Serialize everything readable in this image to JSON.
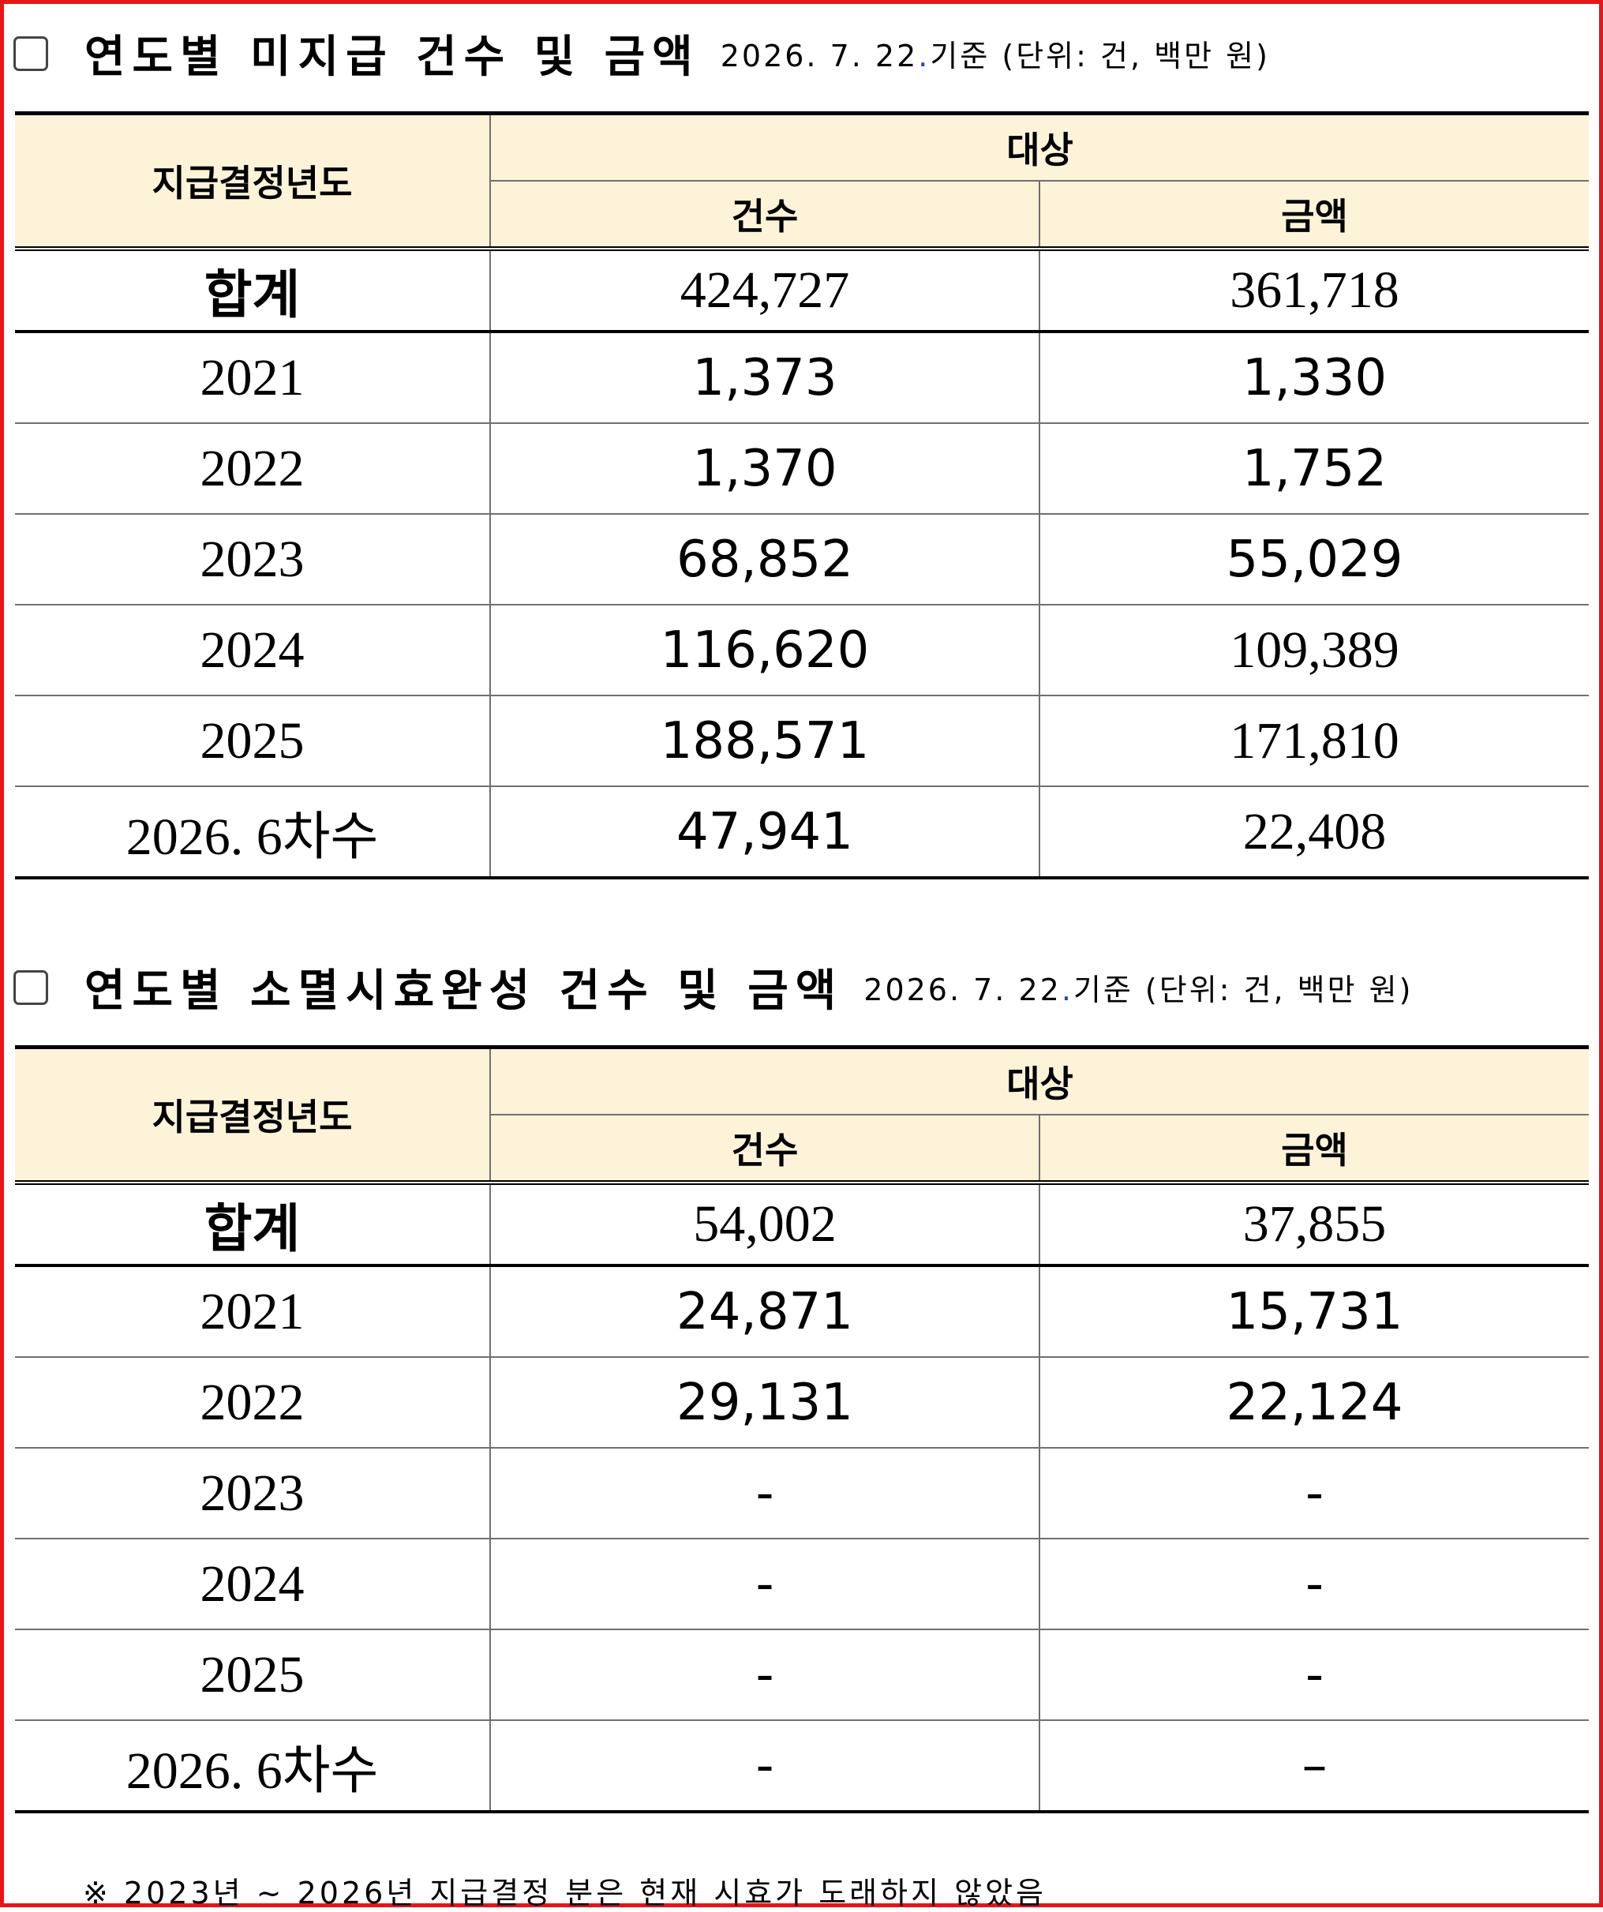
{
  "section1": {
    "title": "연도별 미지급 건수 및 금액",
    "note_date_a": "2026. 7. 22",
    "note_dot": ".",
    "note_rest": "기준 (단위: 건, 백만 원)",
    "header": {
      "year": "지급결정년도",
      "target": "대상",
      "count": "건수",
      "amount": "금액"
    },
    "total": {
      "label": "합계",
      "count": "424,727",
      "amount": "361,718"
    },
    "rows": [
      {
        "year": "2021",
        "count": "1,373",
        "amount": "1,330"
      },
      {
        "year": "2022",
        "count": "1,370",
        "amount": "1,752"
      },
      {
        "year": "2023",
        "count": "68,852",
        "amount": "55,029"
      },
      {
        "year": "2024",
        "count": "116,620",
        "amount": "109,389"
      },
      {
        "year": "2025",
        "count": "188,571",
        "amount": "171,810"
      },
      {
        "year": "2026. 6차수",
        "count": "47,941",
        "amount": "22,408"
      }
    ]
  },
  "section2": {
    "title": "연도별 소멸시효완성 건수 및 금액",
    "note_date_a": "2026. 7. 22",
    "note_dot": ".",
    "note_rest": "기준 (단위: 건, 백만 원)",
    "header": {
      "year": "지급결정년도",
      "target": "대상",
      "count": "건수",
      "amount": "금액"
    },
    "total": {
      "label": "합계",
      "count": "54,002",
      "amount": "37,855"
    },
    "rows": [
      {
        "year": "2021",
        "count": "24,871",
        "amount": "15,731"
      },
      {
        "year": "2022",
        "count": "29,131",
        "amount": "22,124"
      },
      {
        "year": "2023",
        "count": "-",
        "amount": "-"
      },
      {
        "year": "2024",
        "count": "-",
        "amount": "-"
      },
      {
        "year": "2025",
        "count": "-",
        "amount": "-"
      },
      {
        "year": "2026. 6차수",
        "count": "-",
        "amount": "–"
      }
    ]
  },
  "footnote": "※ 2023년 ~ 2026년 지급결정 분은 현재 시효가 도래하지 않았음"
}
